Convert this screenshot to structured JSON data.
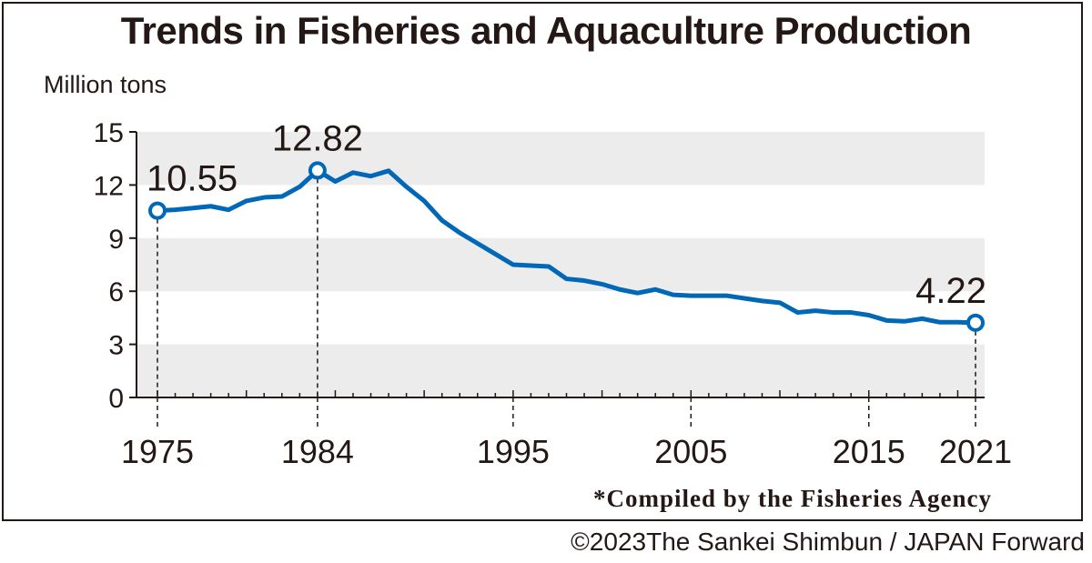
{
  "chart_data": {
    "type": "line",
    "title": "Trends in Fisheries and Aquaculture Production",
    "ylabel": "Million tons",
    "xlabel": "",
    "ylim": [
      0,
      15
    ],
    "yticks": [
      "0",
      "3",
      "6",
      "9",
      "12",
      "15"
    ],
    "xticks": [
      "1975",
      "1984",
      "1995",
      "2005",
      "2015",
      "2021"
    ],
    "grid": "alternating horizontal bands",
    "x": [
      1975,
      1976,
      1977,
      1978,
      1979,
      1980,
      1981,
      1982,
      1983,
      1984,
      1985,
      1986,
      1987,
      1988,
      1989,
      1990,
      1991,
      1992,
      1993,
      1994,
      1995,
      1996,
      1997,
      1998,
      1999,
      2000,
      2001,
      2002,
      2003,
      2004,
      2005,
      2006,
      2007,
      2008,
      2009,
      2010,
      2011,
      2012,
      2013,
      2014,
      2015,
      2016,
      2017,
      2018,
      2019,
      2020,
      2021
    ],
    "series": [
      {
        "values": [
          10.55,
          10.6,
          10.7,
          10.8,
          10.6,
          11.1,
          11.3,
          11.35,
          11.9,
          12.82,
          12.2,
          12.7,
          12.5,
          12.8,
          11.9,
          11.1,
          10.0,
          9.3,
          8.7,
          8.1,
          7.5,
          7.45,
          7.4,
          6.7,
          6.6,
          6.4,
          6.1,
          5.9,
          6.1,
          5.8,
          5.75,
          5.75,
          5.75,
          5.6,
          5.45,
          5.35,
          4.8,
          4.9,
          4.8,
          4.8,
          4.65,
          4.35,
          4.3,
          4.45,
          4.25,
          4.25,
          4.22
        ],
        "color": "#0068b7"
      }
    ],
    "annotations": [
      {
        "x": 1975,
        "label": "10.55"
      },
      {
        "x": 1984,
        "label": "12.82"
      },
      {
        "x": 2021,
        "label": "4.22"
      }
    ],
    "band_color": "#ececed"
  },
  "source_note": "*Compiled by the Fisheries Agency",
  "credit": "©2023The Sankei Shimbun / JAPAN Forward"
}
